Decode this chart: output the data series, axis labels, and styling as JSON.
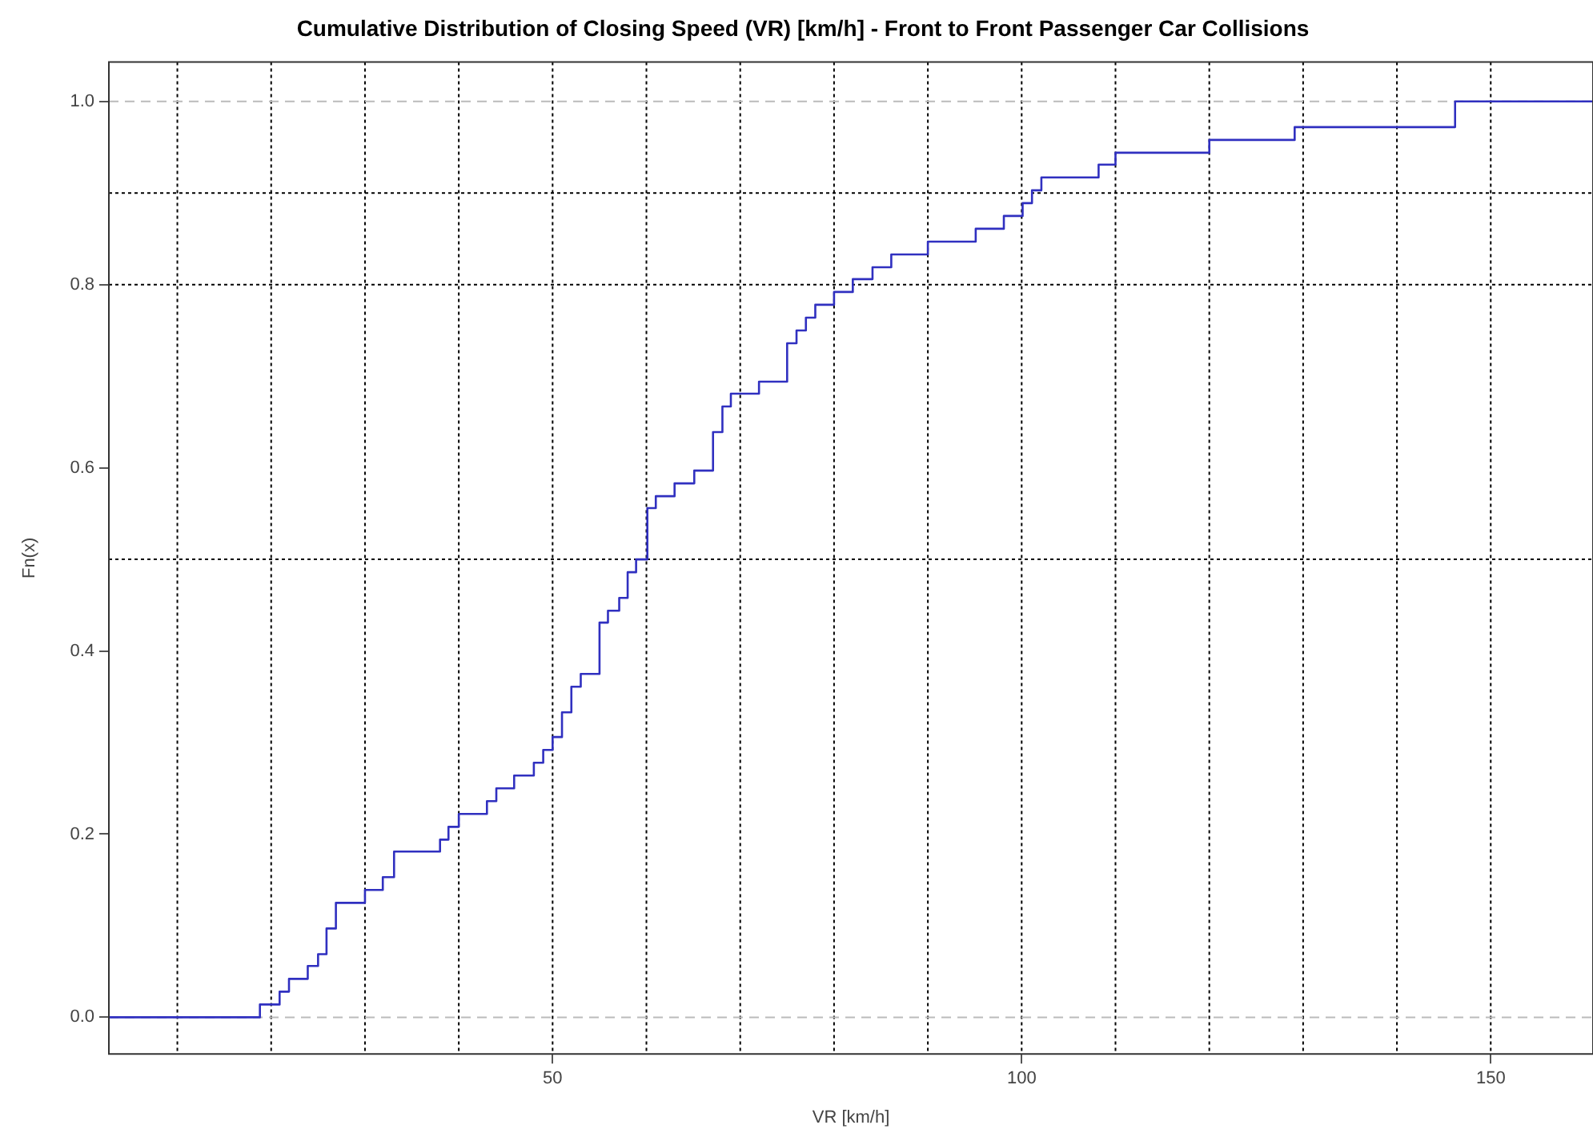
{
  "chart_data": {
    "type": "step",
    "title": "Cumulative Distribution of Closing Speed (VR) [km/h] - Front to Front Passenger Car Collisions",
    "xlabel": "VR [km/h]",
    "ylabel": "Fn(x)",
    "x": [
      2.7,
      18.8,
      20.9,
      21.9,
      23.9,
      25.0,
      25.9,
      26.9,
      30.0,
      31.9,
      33.1,
      38.0,
      38.9,
      40.0,
      43.0,
      44.0,
      45.9,
      48.0,
      49.0,
      50.0,
      51.0,
      52.0,
      53.0,
      55.0,
      55.9,
      57.1,
      58.0,
      58.9,
      60.1,
      61.0,
      63.0,
      65.1,
      67.1,
      68.1,
      69.0,
      72.0,
      75.0,
      76.0,
      77.0,
      78.0,
      80.0,
      82.0,
      84.1,
      86.1,
      90.0,
      95.1,
      98.1,
      100.1,
      101.1,
      102.1,
      108.2,
      110.0,
      120.0,
      129.1,
      146.2,
      160.9
    ],
    "series": [
      {
        "color": "#3030c0",
        "values": [
          0,
          0.014,
          0.028,
          0.042,
          0.056,
          0.069,
          0.097,
          0.125,
          0.139,
          0.153,
          0.181,
          0.194,
          0.208,
          0.222,
          0.236,
          0.25,
          0.264,
          0.278,
          0.292,
          0.306,
          0.333,
          0.361,
          0.375,
          0.431,
          0.444,
          0.458,
          0.486,
          0.5,
          0.556,
          0.569,
          0.583,
          0.597,
          0.639,
          0.667,
          0.681,
          0.694,
          0.736,
          0.75,
          0.764,
          0.778,
          0.792,
          0.806,
          0.819,
          0.833,
          0.847,
          0.861,
          0.875,
          0.889,
          0.903,
          0.917,
          0.931,
          0.944,
          0.958,
          0.972,
          1.0,
          1.0
        ]
      }
    ],
    "xlim": [
      2.7,
      160.9
    ],
    "xticks": [
      50,
      100,
      150
    ],
    "ylim": [
      -0.04,
      1.043
    ],
    "yticks": [
      {
        "value": 0,
        "label": "0.0"
      },
      0.2,
      0.4,
      0.6,
      0.8,
      {
        "value": 1,
        "label": "1.0"
      }
    ],
    "grid": false,
    "legend": false,
    "marker": "none",
    "line_style": "solid",
    "ref_lines": [
      {
        "axis": "x",
        "value": 10,
        "color": "#000000",
        "line_style": "dotted"
      },
      {
        "axis": "x",
        "value": 20,
        "color": "#000000",
        "line_style": "dotted"
      },
      {
        "axis": "x",
        "value": 30,
        "color": "#000000",
        "line_style": "dotted"
      },
      {
        "axis": "x",
        "value": 40,
        "color": "#000000",
        "line_style": "dotted"
      },
      {
        "axis": "x",
        "value": 50,
        "color": "#000000",
        "line_style": "dotted"
      },
      {
        "axis": "x",
        "value": 60,
        "color": "#000000",
        "line_style": "dotted"
      },
      {
        "axis": "x",
        "value": 70,
        "color": "#000000",
        "line_style": "dotted"
      },
      {
        "axis": "x",
        "value": 80,
        "color": "#000000",
        "line_style": "dotted"
      },
      {
        "axis": "x",
        "value": 90,
        "color": "#000000",
        "line_style": "dotted"
      },
      {
        "axis": "x",
        "value": 100,
        "color": "#000000",
        "line_style": "dotted"
      },
      {
        "axis": "x",
        "value": 110,
        "color": "#000000",
        "line_style": "dotted"
      },
      {
        "axis": "x",
        "value": 120,
        "color": "#000000",
        "line_style": "dotted"
      },
      {
        "axis": "x",
        "value": 130,
        "color": "#000000",
        "line_style": "dotted"
      },
      {
        "axis": "x",
        "value": 140,
        "color": "#000000",
        "line_style": "dotted"
      },
      {
        "axis": "x",
        "value": 150,
        "color": "#000000",
        "line_style": "dotted"
      },
      {
        "axis": "y",
        "value": 0.5,
        "color": "#000000",
        "line_style": "dotted"
      },
      {
        "axis": "y",
        "value": 0.8,
        "color": "#000000",
        "line_style": "dotted"
      },
      {
        "axis": "y",
        "value": 0.9,
        "color": "#000000",
        "line_style": "dotted"
      },
      {
        "axis": "y",
        "value": 0,
        "color": "#bbbbbb",
        "line_style": "dashed"
      },
      {
        "axis": "y",
        "value": 1,
        "color": "#bbbbbb",
        "line_style": "dashed"
      }
    ]
  }
}
